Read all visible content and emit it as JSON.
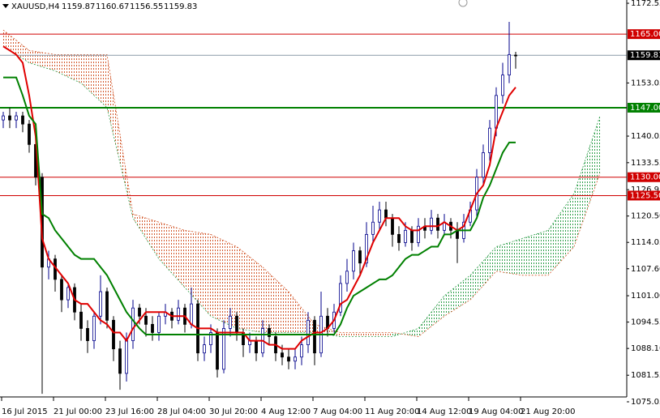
{
  "chart_data": {
    "type": "candlestick",
    "symbol": "XAUUSD,H4",
    "ylim": [
      1075.05,
      1173.35
    ],
    "yticks": [
      1172.55,
      1153.05,
      1140.05,
      1133.55,
      1126.95,
      {
        "value": 1120.5,
        "label": "1120.50"
      },
      1114.05,
      {
        "value": 1107.6,
        "label": "1107.60"
      },
      {
        "value": 1101,
        "label": "1101.00"
      },
      1094.55,
      {
        "value": 1088.1,
        "label": "1088.10"
      },
      1081.55,
      1075.05
    ],
    "xticks": [
      {
        "value": 0,
        "label": "16 Jul 2015"
      },
      {
        "value": 8,
        "label": "21 Jul 00:00"
      },
      {
        "value": 16,
        "label": "23 Jul 16:00"
      },
      {
        "value": 24,
        "label": "28 Jul 04:00"
      },
      {
        "value": 32,
        "label": "30 Jul 20:00"
      },
      {
        "value": 40,
        "label": "4 Aug 12:00"
      },
      {
        "value": 48,
        "label": "7 Aug 04:00"
      },
      {
        "value": 56,
        "label": "11 Aug 20:00"
      },
      {
        "value": 64,
        "label": "14 Aug 12:00"
      },
      {
        "value": 72,
        "label": "19 Aug 04:00"
      },
      {
        "value": 80,
        "label": "21 Aug 20:00"
      }
    ],
    "up_color": "#00008b",
    "down_color": "#000000",
    "open": [
      1144,
      1145,
      1144,
      1145,
      1143,
      1138,
      1130,
      1108,
      1110,
      1105,
      1100,
      1103,
      1097,
      1093,
      1090,
      1096,
      1102,
      1095,
      1088,
      1082,
      1090,
      1098,
      1096,
      1094,
      1092,
      1096,
      1097,
      1095,
      1098,
      1094,
      1099,
      1087,
      1089,
      1092,
      1083,
      1093,
      1096,
      1092,
      1089,
      1090,
      1087,
      1093,
      1091,
      1087,
      1086,
      1085,
      1086,
      1089,
      1095,
      1087,
      1096,
      1093,
      1097,
      1104,
      1107,
      1112,
      1109,
      1116,
      1119,
      1122,
      1120,
      1116,
      1114,
      1117,
      1114,
      1118,
      1117,
      1120,
      1117,
      1119,
      1117,
      1115,
      1119,
      1122,
      1130,
      1136,
      1142,
      1150,
      1155,
      1159.87
    ],
    "high": [
      1146,
      1147,
      1146,
      1146,
      1144,
      1139,
      1131,
      1112,
      1111,
      1106,
      1104,
      1104,
      1099,
      1095,
      1097,
      1106,
      1103,
      1096,
      1090,
      1092,
      1100,
      1099,
      1098,
      1096,
      1097,
      1099,
      1098,
      1100,
      1099,
      1103,
      1100,
      1091,
      1094,
      1093,
      1095,
      1098,
      1097,
      1093,
      1092,
      1091,
      1095,
      1094,
      1092,
      1089,
      1088,
      1088,
      1091,
      1097,
      1096,
      1102,
      1098,
      1099,
      1106,
      1110,
      1114,
      1113,
      1119,
      1123,
      1124,
      1124,
      1121,
      1118,
      1119,
      1118,
      1120,
      1120,
      1122,
      1121,
      1121,
      1120,
      1119,
      1121,
      1124,
      1132,
      1138,
      1144,
      1152,
      1158,
      1168,
      1160.67
    ],
    "low": [
      1142,
      1142,
      1142,
      1141,
      1136,
      1128,
      1077,
      1105,
      1102,
      1097,
      1098,
      1095,
      1090,
      1087,
      1088,
      1094,
      1093,
      1085,
      1078,
      1080,
      1088,
      1094,
      1091,
      1090,
      1090,
      1094,
      1093,
      1094,
      1092,
      1093,
      1085,
      1085,
      1087,
      1081,
      1082,
      1091,
      1090,
      1086,
      1087,
      1085,
      1086,
      1089,
      1085,
      1084,
      1083,
      1083,
      1084,
      1087,
      1084,
      1086,
      1091,
      1092,
      1096,
      1102,
      1105,
      1106,
      1108,
      1114,
      1117,
      1118,
      1113,
      1112,
      1113,
      1112,
      1113,
      1115,
      1116,
      1115,
      1116,
      1115,
      1109,
      1114,
      1118,
      1120,
      1128,
      1134,
      1140,
      1148,
      1153,
      1156.55
    ],
    "close": [
      1145,
      1144,
      1145,
      1143,
      1138,
      1130,
      1108,
      1110,
      1105,
      1100,
      1103,
      1097,
      1093,
      1090,
      1096,
      1102,
      1095,
      1088,
      1082,
      1090,
      1098,
      1096,
      1094,
      1092,
      1096,
      1097,
      1095,
      1098,
      1094,
      1099,
      1087,
      1089,
      1092,
      1083,
      1093,
      1096,
      1092,
      1089,
      1090,
      1087,
      1093,
      1091,
      1087,
      1086,
      1085,
      1086,
      1089,
      1095,
      1087,
      1096,
      1093,
      1097,
      1104,
      1107,
      1112,
      1109,
      1116,
      1119,
      1122,
      1120,
      1116,
      1114,
      1117,
      1114,
      1118,
      1117,
      1120,
      1117,
      1119,
      1117,
      1115,
      1119,
      1122,
      1130,
      1136,
      1142,
      1150,
      1155,
      1160,
      1159.83
    ],
    "lines": [
      {
        "color": "#e00000",
        "values": [
          1162,
          1161,
          1160,
          1158,
          1150,
          1140,
          1115,
          1110,
          1108,
          1106,
          1104,
          1100,
          1099,
          1099,
          1097,
          1095,
          1094,
          1092,
          1092,
          1090,
          1093,
          1095,
          1097,
          1097,
          1097,
          1097,
          1096,
          1096,
          1096,
          1094,
          1093,
          1093,
          1093,
          1092,
          1092,
          1092,
          1092,
          1092,
          1090,
          1090,
          1090,
          1089,
          1089,
          1088,
          1088,
          1088,
          1090,
          1091,
          1092,
          1092,
          1093,
          1095,
          1099,
          1100,
          1103,
          1106,
          1110,
          1114,
          1117,
          1120,
          1120,
          1120,
          1118,
          1117,
          1117,
          1118,
          1118,
          1118,
          1119,
          1118,
          1117,
          1118,
          1122,
          1126,
          1128,
          1133,
          1142,
          1146,
          1150,
          1152
        ]
      },
      {
        "color": "#008000",
        "values": [
          1154.4,
          1154.4,
          1154.4,
          1150,
          1145,
          1143,
          1121,
          1120,
          1117,
          1115,
          1113,
          1111,
          1110,
          1110,
          1110,
          1108,
          1106,
          1103,
          1100,
          1097,
          1095,
          1093,
          1091.5,
          1091.5,
          1091.5,
          1091.5,
          1091.5,
          1091.5,
          1091.5,
          1091.5,
          1091.5,
          1091.5,
          1091.5,
          1091.5,
          1091.5,
          1091.5,
          1091.5,
          1091.5,
          1091.5,
          1091.5,
          1091.5,
          1091.5,
          1091.5,
          1091.5,
          1091.5,
          1091.5,
          1091.5,
          1091.5,
          1091.5,
          1091.5,
          1091.5,
          1091.5,
          1094,
          1098,
          1101,
          1102,
          1103,
          1104,
          1105,
          1105,
          1106,
          1108,
          1110,
          1111,
          1111,
          1112,
          1113,
          1113,
          1116,
          1116,
          1117,
          1117,
          1117,
          1120,
          1125,
          1128,
          1132,
          1136,
          1138.5,
          1138.5
        ]
      }
    ],
    "cloud": {
      "x": [
        0,
        4,
        8,
        12,
        16,
        20,
        24,
        28,
        32,
        36,
        40,
        44,
        48,
        52,
        56,
        60,
        64,
        68,
        72,
        76,
        80,
        84,
        88,
        92
      ],
      "span_a": [
        1162,
        1158,
        1156,
        1153,
        1147,
        1120,
        1110,
        1103,
        1096,
        1093,
        1092,
        1092,
        1092,
        1091,
        1091,
        1091,
        1093,
        1101,
        1106,
        1113,
        1115,
        1117,
        1126,
        1145
      ],
      "span_b": [
        1166,
        1161,
        1160,
        1160,
        1160,
        1121,
        1119,
        1117,
        1116,
        1113,
        1108,
        1102,
        1094,
        1092,
        1092,
        1092,
        1091,
        1096,
        1100,
        1107,
        1106,
        1106,
        1113,
        1131
      ],
      "up_color": "#2e9e4a",
      "down_color": "#d2572a"
    },
    "levels": [
      {
        "value": 1165,
        "label": "1165.00",
        "color": "#d00000",
        "box": "#d00000"
      },
      {
        "value": 1159.83,
        "color": "#8c9aa8",
        "box": "#000000"
      },
      {
        "value": 1147,
        "label": "1147.00",
        "color": "#008000",
        "box": "#008000"
      },
      {
        "value": 1130,
        "label": "1130.00",
        "color": "#d00000",
        "box": "#d00000"
      },
      {
        "value": 1125.5,
        "label": "1125.50",
        "color": "#d00000",
        "box": "#d00000"
      }
    ]
  }
}
